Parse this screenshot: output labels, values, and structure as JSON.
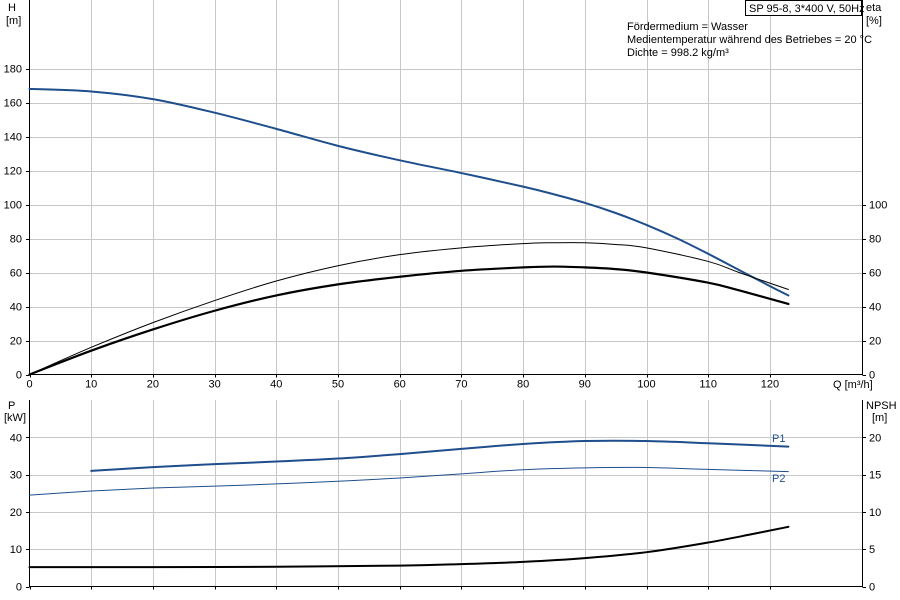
{
  "title": "SP 95-8, 3*400 V, 50Hz",
  "info": [
    "Fördermedium = Wasser",
    "Medientemperatur während des Betriebes = 20 °C",
    "Dichte = 998.2 kg/m³"
  ],
  "colors": {
    "blue": "#1f4e8c",
    "black": "#000000",
    "grid": "#c8c8c8"
  },
  "chart_data": [
    {
      "type": "line",
      "x_axis": {
        "label": "Q [m³/h]",
        "range": [
          0,
          135
        ],
        "ticks": [
          0,
          10,
          20,
          30,
          40,
          50,
          60,
          70,
          80,
          90,
          100,
          110,
          120
        ]
      },
      "y_left": {
        "label_line1": "H",
        "label_line2": "[m]",
        "range": [
          0,
          200
        ],
        "ticks": [
          0,
          20,
          40,
          60,
          80,
          100,
          120,
          140,
          160,
          180
        ]
      },
      "y_right": {
        "label_line1": "eta",
        "label_line2": "[%]",
        "range": [
          0,
          200
        ],
        "ticks": [
          0,
          20,
          40,
          60,
          80,
          100
        ]
      },
      "grid": true,
      "series": [
        {
          "key": "H",
          "axis": "left",
          "color": "#1f4e8c",
          "width": 2,
          "points": [
            [
              0,
              168
            ],
            [
              10,
              166.5
            ],
            [
              20,
              162
            ],
            [
              30,
              154
            ],
            [
              40,
              144.5
            ],
            [
              50,
              134.5
            ],
            [
              60,
              126
            ],
            [
              70,
              118.5
            ],
            [
              80,
              110.5
            ],
            [
              85,
              106
            ],
            [
              90,
              101
            ],
            [
              95,
              95
            ],
            [
              100,
              88
            ],
            [
              105,
              80
            ],
            [
              110,
              71
            ],
            [
              115,
              61.5
            ],
            [
              120,
              52
            ],
            [
              123,
              46.5
            ]
          ]
        },
        {
          "key": "eta_thin",
          "axis": "right",
          "color": "#000000",
          "width": 1,
          "points": [
            [
              0,
              0
            ],
            [
              10,
              16
            ],
            [
              20,
              30.5
            ],
            [
              30,
              43.5
            ],
            [
              40,
              55
            ],
            [
              50,
              64
            ],
            [
              60,
              70.5
            ],
            [
              70,
              74.5
            ],
            [
              80,
              77
            ],
            [
              85,
              77.5
            ],
            [
              90,
              77.5
            ],
            [
              95,
              76.5
            ],
            [
              100,
              74.5
            ],
            [
              110,
              66.5
            ],
            [
              115,
              60
            ],
            [
              123,
              50
            ]
          ]
        },
        {
          "key": "eta_bold",
          "axis": "right",
          "color": "#000000",
          "width": 2.2,
          "points": [
            [
              0,
              0
            ],
            [
              10,
              14
            ],
            [
              20,
              26.5
            ],
            [
              30,
              37.5
            ],
            [
              40,
              46.5
            ],
            [
              50,
              53
            ],
            [
              60,
              57.5
            ],
            [
              70,
              61
            ],
            [
              80,
              63
            ],
            [
              85,
              63.5
            ],
            [
              90,
              63
            ],
            [
              95,
              62
            ],
            [
              100,
              60
            ],
            [
              110,
              54
            ],
            [
              115,
              49.5
            ],
            [
              123,
              41.5
            ]
          ]
        }
      ]
    },
    {
      "type": "line",
      "x_axis": {
        "range": [
          0,
          135
        ],
        "ticks": [
          0,
          10,
          20,
          30,
          40,
          50,
          60,
          70,
          80,
          90,
          100,
          110,
          120
        ]
      },
      "y_left": {
        "label_line1": "P",
        "label_line2": "[kW]",
        "range": [
          0,
          45
        ],
        "ticks": [
          0,
          10,
          20,
          30,
          40
        ]
      },
      "y_right": {
        "label_line1": "NPSH",
        "label_line2": "[m]",
        "range": [
          0,
          22.5
        ],
        "ticks": [
          0,
          5,
          10,
          15,
          20
        ]
      },
      "grid": true,
      "series": [
        {
          "key": "P1",
          "name": "P1",
          "axis": "left",
          "color": "#1f4e8c",
          "width": 2,
          "points": [
            [
              10,
              31
            ],
            [
              20,
              32
            ],
            [
              30,
              32.8
            ],
            [
              40,
              33.5
            ],
            [
              50,
              34.3
            ],
            [
              60,
              35.5
            ],
            [
              70,
              36.9
            ],
            [
              80,
              38.2
            ],
            [
              90,
              39
            ],
            [
              100,
              39
            ],
            [
              110,
              38.4
            ],
            [
              123,
              37.5
            ]
          ]
        },
        {
          "key": "P2",
          "name": "P2",
          "axis": "left",
          "color": "#1f4e8c",
          "width": 1,
          "points": [
            [
              0,
              24.5
            ],
            [
              10,
              25.6
            ],
            [
              20,
              26.4
            ],
            [
              30,
              26.9
            ],
            [
              40,
              27.5
            ],
            [
              50,
              28.2
            ],
            [
              60,
              29.1
            ],
            [
              70,
              30.2
            ],
            [
              80,
              31.3
            ],
            [
              90,
              31.8
            ],
            [
              100,
              31.9
            ],
            [
              110,
              31.4
            ],
            [
              123,
              30.8
            ]
          ]
        },
        {
          "key": "NPSH",
          "axis": "right",
          "color": "#000000",
          "width": 2,
          "points": [
            [
              0,
              2.6
            ],
            [
              20,
              2.6
            ],
            [
              40,
              2.65
            ],
            [
              60,
              2.8
            ],
            [
              70,
              3
            ],
            [
              80,
              3.3
            ],
            [
              90,
              3.8
            ],
            [
              100,
              4.6
            ],
            [
              110,
              5.9
            ],
            [
              117,
              7
            ],
            [
              123,
              8
            ]
          ]
        }
      ]
    }
  ]
}
